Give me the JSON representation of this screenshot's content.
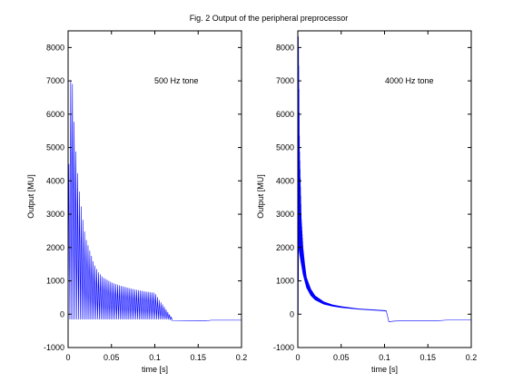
{
  "figure": {
    "title": "Fig. 2 Output of the peripheral preprocessor",
    "background": "#ffffff",
    "line_color": "#0000ff",
    "axis_color": "#000000"
  },
  "chart_data": [
    {
      "type": "line",
      "annotation": "500 Hz tone",
      "xlabel": "time [s]",
      "ylabel": "Output [MU]",
      "xlim": [
        0,
        0.2
      ],
      "ylim": [
        -1000,
        8500
      ],
      "xticks": [
        0,
        0.05,
        0.1,
        0.15,
        0.2
      ],
      "xtick_labels": [
        "0",
        "0.05",
        "0.1",
        "0.15",
        "0.2"
      ],
      "yticks": [
        -1000,
        0,
        1000,
        2000,
        3000,
        4000,
        5000,
        6000,
        7000,
        8000
      ],
      "ytick_labels": [
        "-1000",
        "0",
        "1000",
        "2000",
        "3000",
        "4000",
        "5000",
        "6000",
        "7000",
        "8000"
      ],
      "grid": false,
      "series": [
        {
          "style": "oscillating",
          "frequency_hz": 500,
          "x": [
            0,
            0.001,
            0.003,
            0.005,
            0.008,
            0.012,
            0.016,
            0.02,
            0.025,
            0.03,
            0.035,
            0.04,
            0.05,
            0.06,
            0.07,
            0.08,
            0.09,
            0.1,
            0.105,
            0.11,
            0.115,
            0.12
          ],
          "upper": [
            0,
            4500,
            7000,
            6900,
            5200,
            3900,
            3000,
            2300,
            1900,
            1500,
            1250,
            1100,
            950,
            850,
            780,
            720,
            670,
            640,
            420,
            250,
            60,
            -120
          ],
          "lower": [
            0,
            -150,
            -150,
            -150,
            -150,
            -150,
            -150,
            -150,
            -150,
            -150,
            -150,
            -150,
            -150,
            -150,
            -150,
            -150,
            -150,
            -150,
            -150,
            -150,
            -150,
            -180
          ],
          "tail_x": [
            0.12,
            0.15,
            0.16,
            0.165,
            0.2
          ],
          "tail_y": [
            -190,
            -200,
            -200,
            -180,
            -180
          ]
        }
      ]
    },
    {
      "type": "line",
      "annotation": "4000 Hz tone",
      "xlabel": "time [s]",
      "ylabel": "Output [MU]",
      "xlim": [
        0,
        0.2
      ],
      "ylim": [
        -1000,
        8500
      ],
      "xticks": [
        0,
        0.05,
        0.1,
        0.15,
        0.2
      ],
      "xtick_labels": [
        "0",
        "0.05",
        "0.1",
        "0.15",
        "0.2"
      ],
      "yticks": [
        -1000,
        0,
        1000,
        2000,
        3000,
        4000,
        5000,
        6000,
        7000,
        8000
      ],
      "ytick_labels": [
        "-1000",
        "0",
        "1000",
        "2000",
        "3000",
        "4000",
        "5000",
        "6000",
        "7000",
        "8000"
      ],
      "grid": false,
      "series": [
        {
          "style": "oscillating",
          "frequency_hz": 4000,
          "x": [
            0,
            0.0005,
            0.001,
            0.002,
            0.004,
            0.006,
            0.008,
            0.01,
            0.015,
            0.02,
            0.03,
            0.04,
            0.05,
            0.07,
            0.1,
            0.102
          ],
          "upper": [
            0,
            8500,
            7800,
            5000,
            2900,
            2000,
            1500,
            1100,
            750,
            550,
            370,
            280,
            230,
            160,
            110,
            100
          ],
          "lower": [
            0,
            0,
            2000,
            1800,
            1500,
            1200,
            1000,
            800,
            560,
            430,
            300,
            240,
            200,
            150,
            100,
            90
          ],
          "tail_x": [
            0.102,
            0.105,
            0.11,
            0.12,
            0.15,
            0.16,
            0.17,
            0.18,
            0.2
          ],
          "tail_y": [
            100,
            -230,
            -210,
            -200,
            -200,
            -200,
            -180,
            -170,
            -170
          ]
        }
      ]
    }
  ]
}
